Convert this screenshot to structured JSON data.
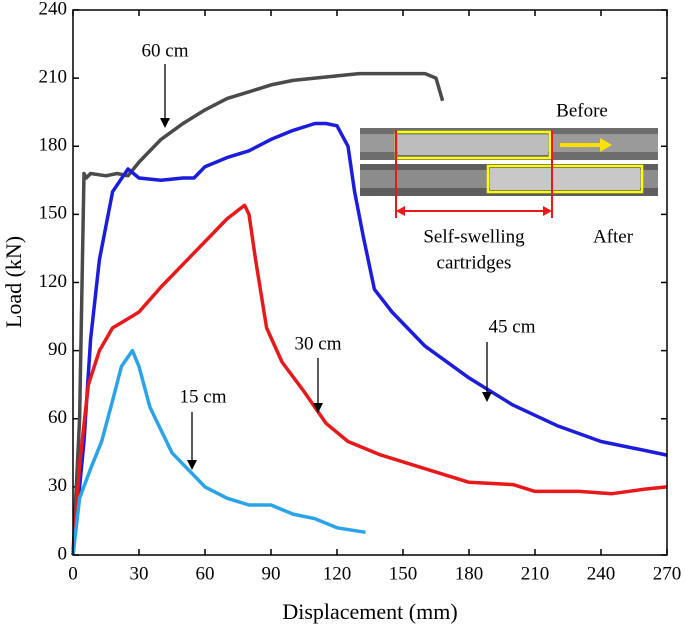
{
  "chart_data": {
    "type": "line",
    "x_label": "Displacement (mm)",
    "y_label": "Load (kN)",
    "xlim": [
      0,
      270
    ],
    "xticks": [
      0,
      30,
      60,
      90,
      120,
      150,
      180,
      210,
      240,
      270
    ],
    "ylim": [
      0,
      240
    ],
    "yticks": [
      0,
      30,
      60,
      90,
      120,
      150,
      180,
      210,
      240
    ],
    "series": [
      {
        "name": "60 cm",
        "color": "#4a4a4a",
        "x": [
          0,
          3,
          5,
          6,
          8,
          15,
          20,
          25,
          30,
          40,
          50,
          60,
          70,
          80,
          90,
          100,
          110,
          120,
          130,
          140,
          150,
          160,
          165,
          168
        ],
        "values": [
          0,
          60,
          168,
          166,
          168,
          167,
          168,
          167,
          173,
          183,
          190,
          196,
          201,
          204,
          207,
          209,
          210,
          211,
          212,
          212,
          212,
          212,
          210,
          200
        ]
      },
      {
        "name": "45 cm",
        "color": "#1c1cdc",
        "x": [
          0,
          5,
          8,
          12,
          18,
          25,
          30,
          40,
          50,
          55,
          60,
          70,
          80,
          90,
          100,
          110,
          115,
          120,
          125,
          128,
          132,
          137,
          145,
          160,
          180,
          200,
          220,
          240,
          260,
          270
        ],
        "values": [
          0,
          50,
          95,
          130,
          160,
          170,
          166,
          165,
          166,
          166,
          171,
          175,
          178,
          183,
          187,
          190,
          190,
          189,
          180,
          160,
          140,
          117,
          107,
          92,
          78,
          66,
          57,
          50,
          46,
          44
        ]
      },
      {
        "name": "30 cm",
        "color": "#e8191b",
        "x": [
          0,
          3,
          7,
          12,
          18,
          25,
          30,
          40,
          50,
          60,
          70,
          78,
          80,
          83,
          88,
          95,
          105,
          115,
          125,
          140,
          160,
          180,
          200,
          210,
          230,
          245,
          260,
          270
        ],
        "values": [
          0,
          40,
          75,
          90,
          100,
          104,
          107,
          118,
          128,
          138,
          148,
          154,
          150,
          130,
          100,
          85,
          72,
          58,
          50,
          44,
          38,
          32,
          31,
          28,
          28,
          27,
          29,
          30
        ]
      },
      {
        "name": "15 cm",
        "color": "#2aa3e8",
        "x": [
          0,
          3,
          8,
          13,
          18,
          22,
          27,
          30,
          35,
          40,
          45,
          50,
          55,
          60,
          70,
          80,
          90,
          95,
          100,
          110,
          120,
          133
        ],
        "values": [
          0,
          25,
          38,
          50,
          68,
          83,
          90,
          83,
          65,
          55,
          45,
          40,
          35,
          30,
          25,
          22,
          22,
          20,
          18,
          16,
          12,
          10
        ]
      }
    ],
    "inset": {
      "before": "Before",
      "after": "After",
      "caption": [
        "Self-swelling",
        "cartridges"
      ]
    }
  }
}
